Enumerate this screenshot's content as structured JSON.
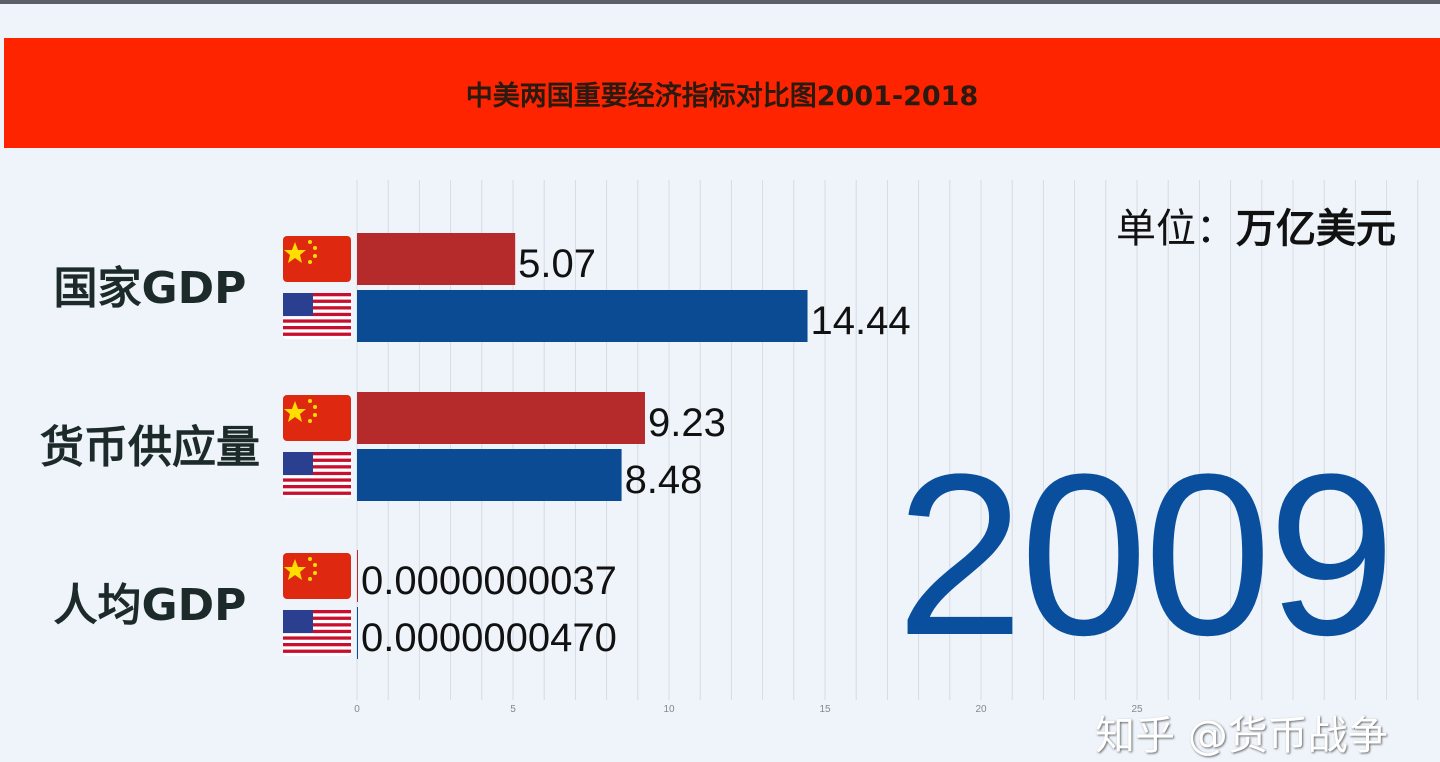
{
  "title": "中美两国重要经济指标对比图2001-2018",
  "unit_label": "单位：",
  "unit_value": "万亿美元",
  "year": "2009",
  "watermark": "知乎 @货币战争",
  "chart_data": {
    "type": "bar",
    "orientation": "horizontal",
    "title": "中美两国重要经济指标对比图2001-2018",
    "categories": [
      "国家GDP",
      "货币供应量",
      "人均GDP"
    ],
    "series": [
      {
        "flag": "china-flag",
        "color": "#b52a2a",
        "values": [
          5.07,
          9.23,
          3.7e-09
        ],
        "labels": [
          "5.07",
          "9.23",
          "0.0000000037"
        ]
      },
      {
        "flag": "usa-flag",
        "color": "#0a4b94",
        "values": [
          14.44,
          8.48,
          4.7e-08
        ],
        "labels": [
          "14.44",
          "8.48",
          "0.0000000470"
        ]
      }
    ],
    "xticks": [
      0,
      5,
      10,
      15,
      20,
      25
    ],
    "xlim": [
      0,
      34
    ],
    "grid": true
  }
}
